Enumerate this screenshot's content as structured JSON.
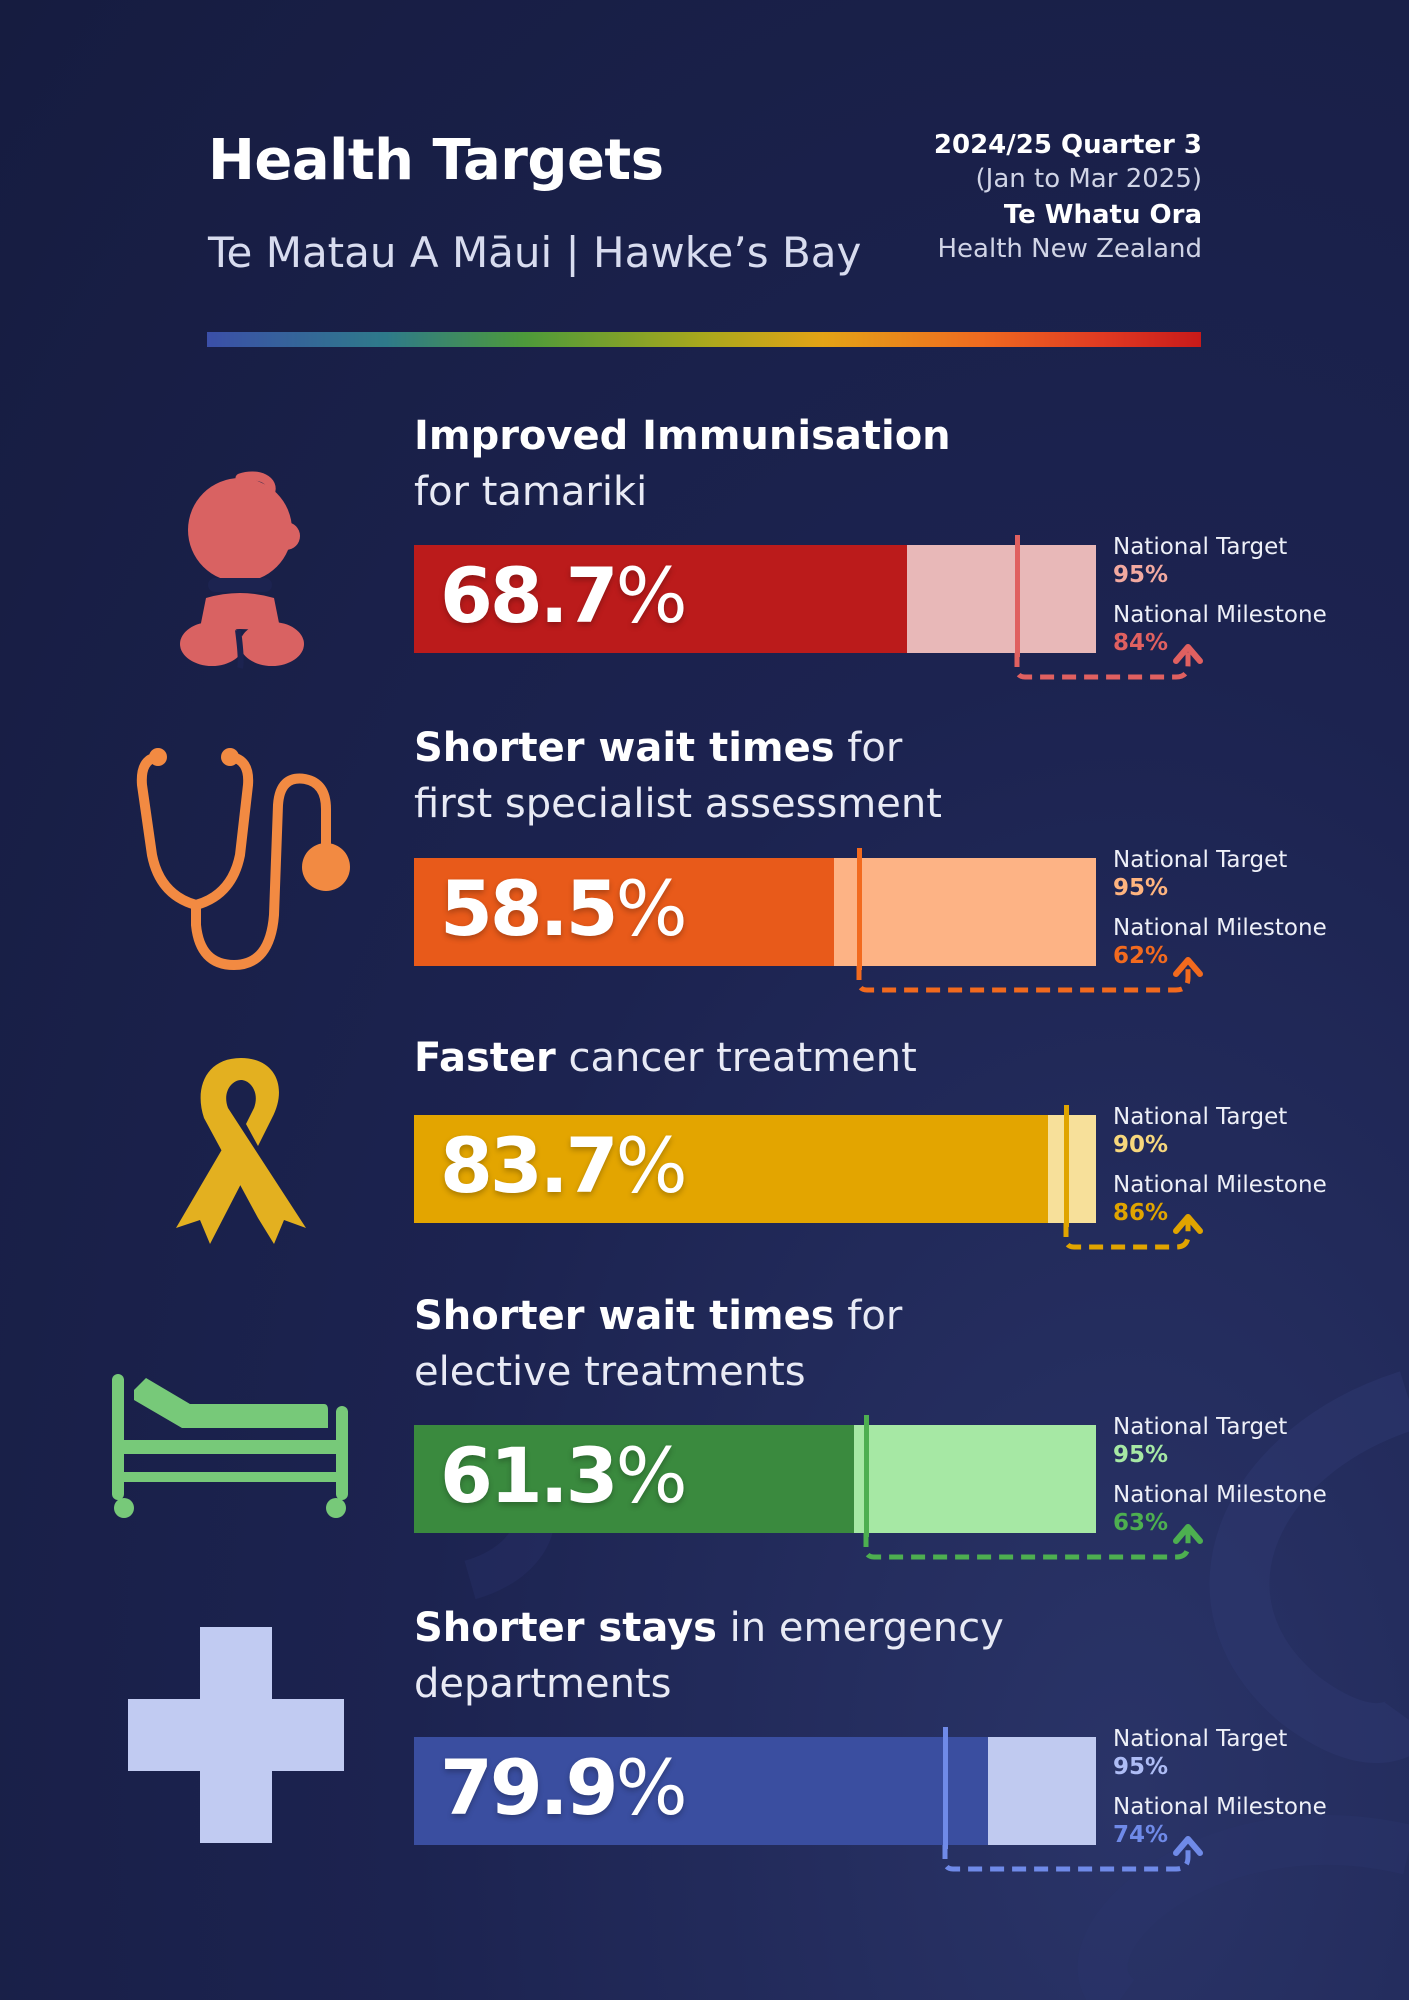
{
  "header": {
    "title": "Health Targets",
    "subtitle": "Te Matau A Māui | Hawke’s Bay",
    "period": "2024/25 Quarter 3",
    "period_range": "(Jan to Mar 2025)",
    "org": "Te Whatu Ora",
    "org_sub": "Health New Zealand"
  },
  "labels": {
    "target": "National Target",
    "milestone": "National Milestone"
  },
  "chart_data": [
    {
      "type": "bar",
      "icon": "baby-icon",
      "title_bold": "Improved Immunisation",
      "title_rest": "",
      "title_line2": "for tamariki",
      "value": 68.7,
      "value_label": "68.7",
      "pct_sign": "%",
      "target": 95,
      "target_label": "95%",
      "milestone": 84,
      "milestone_label": "84%",
      "colors": {
        "fill": "#bb1b1b",
        "bg": "#e8b8b8",
        "accent": "#e06060",
        "pct": "#f2a9a0"
      }
    },
    {
      "type": "bar",
      "icon": "stethoscope-icon",
      "title_bold": "Shorter wait times",
      "title_rest": " for",
      "title_line2": "first specialist assessment",
      "value": 58.5,
      "value_label": "58.5",
      "pct_sign": "%",
      "target": 95,
      "target_label": "95%",
      "milestone": 62,
      "milestone_label": "62%",
      "colors": {
        "fill": "#e85a1a",
        "bg": "#fdb385",
        "accent": "#f26a1e",
        "pct": "#ffb47f"
      }
    },
    {
      "type": "bar",
      "icon": "cancer-ribbon-icon",
      "title_bold": "Faster",
      "title_rest": " cancer treatment",
      "title_line2": "",
      "value": 83.7,
      "value_label": "83.7",
      "pct_sign": "%",
      "target": 90,
      "target_label": "90%",
      "milestone": 86,
      "milestone_label": "86%",
      "colors": {
        "fill": "#e3a500",
        "bg": "#f7e09a",
        "accent": "#e0a400",
        "pct": "#f7d77c"
      }
    },
    {
      "type": "bar",
      "icon": "hospital-bed-icon",
      "title_bold": "Shorter wait times",
      "title_rest": " for",
      "title_line2": "elective treatments",
      "value": 61.3,
      "value_label": "61.3",
      "pct_sign": "%",
      "target": 95,
      "target_label": "95%",
      "milestone": 63,
      "milestone_label": "63%",
      "colors": {
        "fill": "#3a8a3e",
        "bg": "#a6e8a4",
        "accent": "#4daf50",
        "pct": "#a6e8a4"
      }
    },
    {
      "type": "bar",
      "icon": "medical-cross-icon",
      "title_bold": "Shorter stays",
      "title_rest": " in emergency",
      "title_line2": "departments",
      "value": 79.9,
      "value_label": "79.9",
      "pct_sign": "%",
      "target": 95,
      "target_label": "95%",
      "milestone": 74,
      "milestone_label": "74%",
      "colors": {
        "fill": "#3a4ea0",
        "bg": "#c0caf0",
        "accent": "#6f8ae8",
        "pct": "#aebcf5"
      }
    }
  ]
}
